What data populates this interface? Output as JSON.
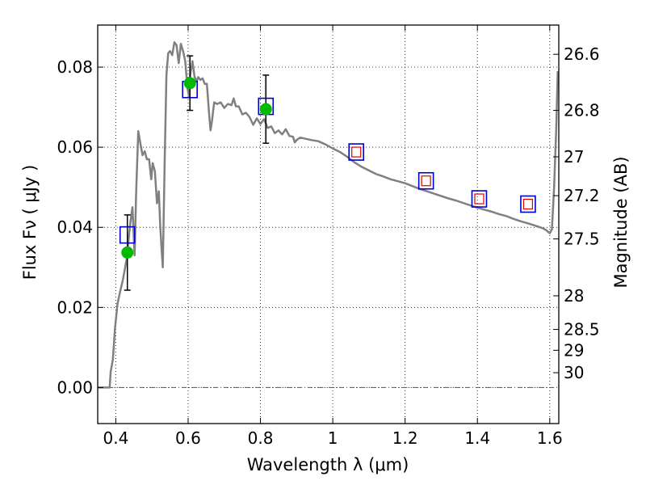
{
  "chart_data": {
    "type": "line",
    "title": "",
    "xlabel": "Wavelength  λ (μm)",
    "ylabel": "Flux  Fν  ( μJy )",
    "y2label": "Magnitude (AB)",
    "xlim": [
      0.35,
      1.625
    ],
    "ylim": [
      -0.009,
      0.0905
    ],
    "xticks": [
      0.4,
      0.6,
      0.8,
      1.0,
      1.2,
      1.4,
      1.6
    ],
    "xtick_labels": [
      "0.4",
      "0.6",
      "0.8",
      "1",
      "1.2",
      "1.4",
      "1.6"
    ],
    "yticks": [
      0.0,
      0.02,
      0.04,
      0.06,
      0.08
    ],
    "ytick_labels": [
      "0.00",
      "0.02",
      "0.04",
      "0.06",
      "0.08"
    ],
    "y2ticks": [
      {
        "label": "26.6",
        "flux": 0.0832
      },
      {
        "label": "26.8",
        "flux": 0.0692
      },
      {
        "label": "27",
        "flux": 0.0576
      },
      {
        "label": "27.2",
        "flux": 0.0479
      },
      {
        "label": "27.5",
        "flux": 0.0371
      },
      {
        "label": "28",
        "flux": 0.0229
      },
      {
        "label": "28.5",
        "flux": 0.0145
      },
      {
        "label": "29",
        "flux": 0.0093
      },
      {
        "label": "30",
        "flux": 0.0037
      }
    ],
    "grid": true,
    "colors": {
      "model": "#808080",
      "observed": "#00bb00",
      "errorbar": "#000000",
      "model_box": "#0000cc",
      "model_box_inner": "#dd0000",
      "zero_line": "#555555"
    },
    "series": [
      {
        "type": "line",
        "points": [
          [
            0.35,
            0.0
          ],
          [
            0.383,
            0.0
          ],
          [
            0.386,
            0.004
          ],
          [
            0.392,
            0.007
          ],
          [
            0.398,
            0.015
          ],
          [
            0.405,
            0.021
          ],
          [
            0.412,
            0.024
          ],
          [
            0.42,
            0.027
          ],
          [
            0.43,
            0.032
          ],
          [
            0.44,
            0.041
          ],
          [
            0.446,
            0.045
          ],
          [
            0.452,
            0.033
          ],
          [
            0.456,
            0.048
          ],
          [
            0.462,
            0.064
          ],
          [
            0.468,
            0.061
          ],
          [
            0.474,
            0.058
          ],
          [
            0.48,
            0.059
          ],
          [
            0.486,
            0.057
          ],
          [
            0.492,
            0.057
          ],
          [
            0.498,
            0.052
          ],
          [
            0.502,
            0.056
          ],
          [
            0.508,
            0.054
          ],
          [
            0.514,
            0.046
          ],
          [
            0.519,
            0.049
          ],
          [
            0.523,
            0.04
          ],
          [
            0.527,
            0.034
          ],
          [
            0.53,
            0.03
          ],
          [
            0.535,
            0.056
          ],
          [
            0.54,
            0.078
          ],
          [
            0.545,
            0.0835
          ],
          [
            0.55,
            0.084
          ],
          [
            0.556,
            0.083
          ],
          [
            0.562,
            0.0862
          ],
          [
            0.568,
            0.0855
          ],
          [
            0.574,
            0.081
          ],
          [
            0.58,
            0.0858
          ],
          [
            0.586,
            0.084
          ],
          [
            0.592,
            0.0815
          ],
          [
            0.598,
            0.0748
          ],
          [
            0.603,
            0.0725
          ],
          [
            0.606,
            0.078
          ],
          [
            0.612,
            0.0815
          ],
          [
            0.618,
            0.0775
          ],
          [
            0.624,
            0.0765
          ],
          [
            0.628,
            0.0775
          ],
          [
            0.634,
            0.0768
          ],
          [
            0.64,
            0.0772
          ],
          [
            0.646,
            0.0758
          ],
          [
            0.652,
            0.0758
          ],
          [
            0.658,
            0.0685
          ],
          [
            0.662,
            0.0642
          ],
          [
            0.666,
            0.0665
          ],
          [
            0.672,
            0.0712
          ],
          [
            0.68,
            0.0708
          ],
          [
            0.69,
            0.0712
          ],
          [
            0.7,
            0.0698
          ],
          [
            0.71,
            0.0708
          ],
          [
            0.72,
            0.0705
          ],
          [
            0.726,
            0.0722
          ],
          [
            0.732,
            0.0702
          ],
          [
            0.74,
            0.0702
          ],
          [
            0.75,
            0.0682
          ],
          [
            0.76,
            0.0686
          ],
          [
            0.77,
            0.0675
          ],
          [
            0.78,
            0.0656
          ],
          [
            0.79,
            0.0672
          ],
          [
            0.8,
            0.0658
          ],
          [
            0.81,
            0.067
          ],
          [
            0.82,
            0.0648
          ],
          [
            0.83,
            0.0652
          ],
          [
            0.84,
            0.0635
          ],
          [
            0.85,
            0.0642
          ],
          [
            0.86,
            0.0632
          ],
          [
            0.87,
            0.0645
          ],
          [
            0.88,
            0.0628
          ],
          [
            0.89,
            0.0626
          ],
          [
            0.895,
            0.0612
          ],
          [
            0.9,
            0.0618
          ],
          [
            0.91,
            0.0624
          ],
          [
            0.92,
            0.0622
          ],
          [
            0.94,
            0.0618
          ],
          [
            0.96,
            0.0615
          ],
          [
            0.98,
            0.0607
          ],
          [
            1.0,
            0.0597
          ],
          [
            1.02,
            0.0588
          ],
          [
            1.04,
            0.0576
          ],
          [
            1.06,
            0.0562
          ],
          [
            1.08,
            0.0551
          ],
          [
            1.1,
            0.0542
          ],
          [
            1.12,
            0.0533
          ],
          [
            1.14,
            0.0527
          ],
          [
            1.16,
            0.052
          ],
          [
            1.18,
            0.0515
          ],
          [
            1.2,
            0.051
          ],
          [
            1.22,
            0.0503
          ],
          [
            1.24,
            0.0496
          ],
          [
            1.26,
            0.049
          ],
          [
            1.28,
            0.0484
          ],
          [
            1.3,
            0.0478
          ],
          [
            1.32,
            0.0472
          ],
          [
            1.34,
            0.0467
          ],
          [
            1.36,
            0.0461
          ],
          [
            1.38,
            0.0455
          ],
          [
            1.4,
            0.0449
          ],
          [
            1.42,
            0.0444
          ],
          [
            1.44,
            0.0439
          ],
          [
            1.46,
            0.0433
          ],
          [
            1.48,
            0.0428
          ],
          [
            1.5,
            0.0421
          ],
          [
            1.52,
            0.0415
          ],
          [
            1.54,
            0.041
          ],
          [
            1.56,
            0.0404
          ],
          [
            1.58,
            0.0398
          ],
          [
            1.59,
            0.0393
          ],
          [
            1.6,
            0.0385
          ],
          [
            1.606,
            0.0395
          ],
          [
            1.612,
            0.05
          ],
          [
            1.618,
            0.065
          ],
          [
            1.622,
            0.079
          ]
        ]
      },
      {
        "type": "scatter",
        "x": [
          0.432,
          0.605,
          0.815
        ],
        "y": [
          0.0337,
          0.076,
          0.0695
        ],
        "yerr": [
          0.0094,
          0.0068,
          0.0085
        ]
      },
      {
        "type": "scatter",
        "x": [
          0.432,
          0.605,
          0.815,
          1.065,
          1.258,
          1.405,
          1.54
        ],
        "y": [
          0.0381,
          0.0744,
          0.0702,
          0.0588,
          0.0516,
          0.0471,
          0.0458
        ]
      }
    ]
  }
}
